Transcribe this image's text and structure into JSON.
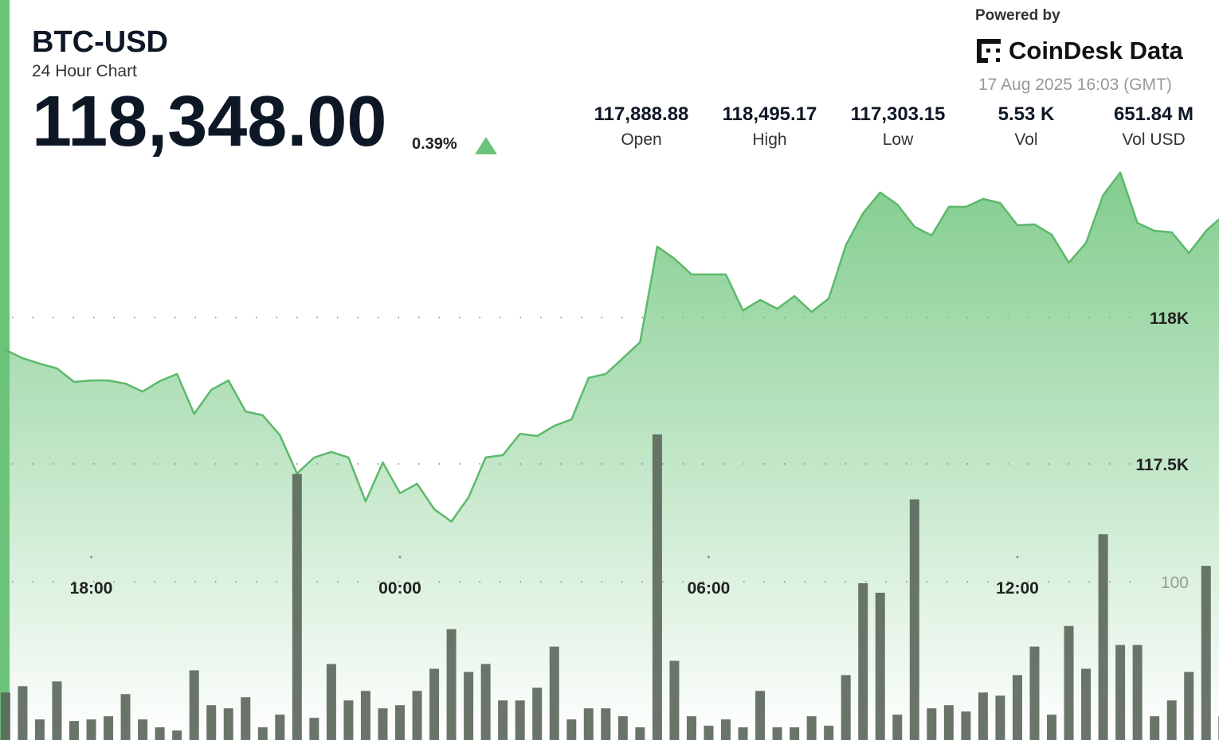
{
  "header": {
    "symbol": "BTC-USD",
    "subtitle": "24 Hour Chart",
    "price": "118,348.00",
    "change": "0.39%",
    "change_direction": "up",
    "change_icon": "triangle-up-icon"
  },
  "stats": [
    {
      "value": "117,888.88",
      "label": "Open"
    },
    {
      "value": "118,495.17",
      "label": "High"
    },
    {
      "value": "117,303.15",
      "label": "Low"
    },
    {
      "value": "5.53 K",
      "label": "Vol"
    },
    {
      "value": "651.84 M",
      "label": "Vol USD"
    }
  ],
  "branding": {
    "powered_by": "Powered by",
    "logo_text": "CoinDesk Data",
    "timestamp": "17 Aug 2025 16:03 (GMT)"
  },
  "colors": {
    "accent": "#6cc47a",
    "line": "#5cb96a",
    "volume": "#5a665a"
  },
  "chart_data": {
    "type": "area",
    "price_axis": {
      "ticks": [
        {
          "value": 118000,
          "label": "118K"
        },
        {
          "value": 117500,
          "label": "117.5K"
        }
      ]
    },
    "volume_axis": {
      "ticks": [
        {
          "value": 100,
          "label": "100"
        }
      ]
    },
    "x_ticks": [
      "18:00",
      "00:00",
      "06:00",
      "12:00"
    ],
    "grid": true,
    "points": [
      {
        "t": "16:20",
        "price": 117889,
        "vol": 30
      },
      {
        "t": "16:40",
        "price": 117861,
        "vol": 34
      },
      {
        "t": "17:00",
        "price": 117842,
        "vol": 13
      },
      {
        "t": "17:20",
        "price": 117826,
        "vol": 37
      },
      {
        "t": "17:40",
        "price": 117780,
        "vol": 12
      },
      {
        "t": "18:00",
        "price": 117785,
        "vol": 13
      },
      {
        "t": "18:20",
        "price": 117785,
        "vol": 15
      },
      {
        "t": "18:40",
        "price": 117774,
        "vol": 29
      },
      {
        "t": "19:00",
        "price": 117747,
        "vol": 13
      },
      {
        "t": "19:20",
        "price": 117783,
        "vol": 8
      },
      {
        "t": "19:40",
        "price": 117807,
        "vol": 6
      },
      {
        "t": "20:00",
        "price": 117671,
        "vol": 44
      },
      {
        "t": "20:20",
        "price": 117753,
        "vol": 22
      },
      {
        "t": "20:40",
        "price": 117785,
        "vol": 20
      },
      {
        "t": "21:00",
        "price": 117679,
        "vol": 27
      },
      {
        "t": "21:20",
        "price": 117666,
        "vol": 8
      },
      {
        "t": "21:40",
        "price": 117598,
        "vol": 16
      },
      {
        "t": "22:00",
        "price": 117467,
        "vol": 168
      },
      {
        "t": "22:20",
        "price": 117522,
        "vol": 14
      },
      {
        "t": "22:40",
        "price": 117541,
        "vol": 48
      },
      {
        "t": "23:00",
        "price": 117522,
        "vol": 25
      },
      {
        "t": "23:20",
        "price": 117372,
        "vol": 31
      },
      {
        "t": "23:40",
        "price": 117505,
        "vol": 20
      },
      {
        "t": "00:00",
        "price": 117400,
        "vol": 22
      },
      {
        "t": "00:20",
        "price": 117432,
        "vol": 31
      },
      {
        "t": "00:40",
        "price": 117345,
        "vol": 45
      },
      {
        "t": "01:00",
        "price": 117303,
        "vol": 70
      },
      {
        "t": "01:20",
        "price": 117386,
        "vol": 43
      },
      {
        "t": "01:40",
        "price": 117522,
        "vol": 48
      },
      {
        "t": "02:00",
        "price": 117530,
        "vol": 25
      },
      {
        "t": "02:20",
        "price": 117603,
        "vol": 25
      },
      {
        "t": "02:40",
        "price": 117595,
        "vol": 33
      },
      {
        "t": "03:00",
        "price": 117630,
        "vol": 59
      },
      {
        "t": "03:20",
        "price": 117652,
        "vol": 13
      },
      {
        "t": "03:40",
        "price": 117794,
        "vol": 20
      },
      {
        "t": "04:00",
        "price": 117807,
        "vol": 20
      },
      {
        "t": "04:20",
        "price": 117861,
        "vol": 15
      },
      {
        "t": "04:40",
        "price": 117916,
        "vol": 8
      },
      {
        "t": "05:00",
        "price": 118242,
        "vol": 193
      },
      {
        "t": "05:20",
        "price": 118201,
        "vol": 50
      },
      {
        "t": "05:40",
        "price": 118147,
        "vol": 15
      },
      {
        "t": "06:00",
        "price": 118147,
        "vol": 9
      },
      {
        "t": "06:20",
        "price": 118147,
        "vol": 13
      },
      {
        "t": "06:40",
        "price": 118024,
        "vol": 8
      },
      {
        "t": "07:00",
        "price": 118060,
        "vol": 31
      },
      {
        "t": "07:20",
        "price": 118030,
        "vol": 8
      },
      {
        "t": "07:40",
        "price": 118073,
        "vol": 8
      },
      {
        "t": "08:00",
        "price": 118019,
        "vol": 15
      },
      {
        "t": "08:20",
        "price": 118065,
        "vol": 9
      },
      {
        "t": "08:40",
        "price": 118247,
        "vol": 41
      },
      {
        "t": "09:00",
        "price": 118356,
        "vol": 99
      },
      {
        "t": "09:20",
        "price": 118427,
        "vol": 93
      },
      {
        "t": "09:40",
        "price": 118386,
        "vol": 16
      },
      {
        "t": "10:00",
        "price": 118310,
        "vol": 152
      },
      {
        "t": "10:20",
        "price": 118280,
        "vol": 20
      },
      {
        "t": "10:40",
        "price": 118378,
        "vol": 22
      },
      {
        "t": "11:00",
        "price": 118378,
        "vol": 18
      },
      {
        "t": "11:20",
        "price": 118405,
        "vol": 30
      },
      {
        "t": "11:40",
        "price": 118391,
        "vol": 28
      },
      {
        "t": "12:00",
        "price": 118315,
        "vol": 41
      },
      {
        "t": "12:20",
        "price": 118318,
        "vol": 59
      },
      {
        "t": "12:40",
        "price": 118283,
        "vol": 16
      },
      {
        "t": "13:00",
        "price": 118187,
        "vol": 72
      },
      {
        "t": "13:20",
        "price": 118255,
        "vol": 45
      },
      {
        "t": "13:40",
        "price": 118418,
        "vol": 130
      },
      {
        "t": "14:00",
        "price": 118495,
        "vol": 60
      },
      {
        "t": "14:20",
        "price": 118323,
        "vol": 60
      },
      {
        "t": "14:40",
        "price": 118296,
        "vol": 15
      },
      {
        "t": "15:00",
        "price": 118291,
        "vol": 25
      },
      {
        "t": "15:20",
        "price": 118220,
        "vol": 43
      },
      {
        "t": "15:40",
        "price": 118296,
        "vol": 110
      },
      {
        "t": "16:00",
        "price": 118348,
        "vol": 15
      }
    ]
  }
}
